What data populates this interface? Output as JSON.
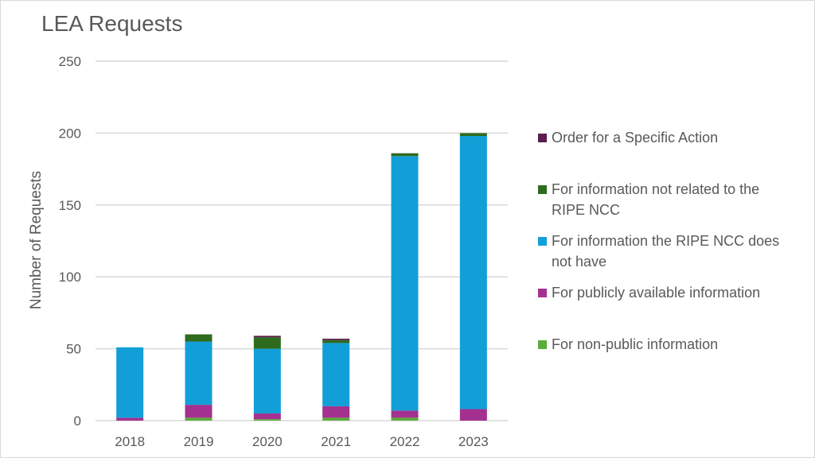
{
  "chart_data": {
    "type": "bar",
    "stacked": true,
    "title": "LEA Requests",
    "xlabel": "",
    "ylabel": "Number of Requests",
    "ylim": [
      0,
      250
    ],
    "yticks": [
      0,
      50,
      100,
      150,
      200,
      250
    ],
    "grid": true,
    "legend_position": "right",
    "categories": [
      "2018",
      "2019",
      "2020",
      "2021",
      "2022",
      "2023"
    ],
    "series": [
      {
        "name": "For non-public information",
        "color": "#5aad3a",
        "values": [
          0,
          2,
          1,
          2,
          2,
          0
        ]
      },
      {
        "name": "For publicly available information",
        "color": "#a4308f",
        "values": [
          2,
          9,
          4,
          8,
          5,
          8
        ]
      },
      {
        "name": "For information the RIPE NCC does not have",
        "color": "#129fd8",
        "values": [
          49,
          44,
          45,
          44,
          177,
          190
        ]
      },
      {
        "name": "For information not related to the RIPE NCC",
        "color": "#2e6b1e",
        "values": [
          0,
          5,
          8,
          2,
          2,
          2
        ]
      },
      {
        "name": "Order for a Specific Action",
        "color": "#5b1e4e",
        "values": [
          0,
          0,
          1,
          1,
          0,
          0
        ]
      }
    ]
  }
}
